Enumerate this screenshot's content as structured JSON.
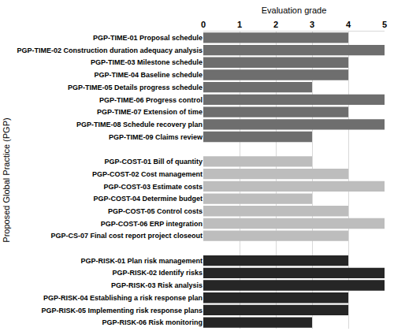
{
  "chart_data": {
    "type": "bar",
    "orientation": "horizontal",
    "x_label": "Evaluation grade",
    "y_label": "Proposed Global Practice (PGP)",
    "categories": [
      "PGP-TIME-01 Proposal schedule",
      "PGP-TIME-02 Construction duration adequacy analysis",
      "PGP-TIME-03 Milestone schedule",
      "PGP-TIME-04 Baseline schedule",
      "PGP-TIME-05 Details progress schedule",
      "PGP-TIME-06 Progress control",
      "PGP-TIME-07 Extension of time",
      "PGP-TIME-08 Schedule recovery plan",
      "PGP-TIME-09 Claims review",
      null,
      "PGP-COST-01 Bill of quantity",
      "PGP-COST-02 Cost management",
      "PGP-COST-03 Estimate costs",
      "PGP-COST-04 Determine budget",
      "PGP-COST-05 Control costs",
      "PGP-COST-06 ERP integration",
      "PGP-CS-07 Final cost report project closeout",
      null,
      "PGP-RISK-01 Plan risk management",
      "PGP-RISK-02 Identify risks",
      "PGP-RISK-03 Risk analysis",
      "PGP-RISK-04 Establishing a risk response plan",
      "PGP-RISK-05 Implementing risk response plans",
      "PGP-RISK-06 Risk monitoring"
    ],
    "values": [
      4,
      5,
      4,
      4,
      3,
      5,
      4,
      5,
      3,
      null,
      3,
      4,
      5,
      3,
      4,
      5,
      4,
      null,
      4,
      5,
      5,
      4,
      4,
      3
    ],
    "colors": [
      "#6e6e6e",
      "#6e6e6e",
      "#6e6e6e",
      "#6e6e6e",
      "#6e6e6e",
      "#6e6e6e",
      "#6e6e6e",
      "#6e6e6e",
      "#6e6e6e",
      null,
      "#bdbdbd",
      "#bdbdbd",
      "#bdbdbd",
      "#bdbdbd",
      "#bdbdbd",
      "#bdbdbd",
      "#bdbdbd",
      null,
      "#262626",
      "#262626",
      "#262626",
      "#262626",
      "#262626",
      "#262626"
    ],
    "xlim": [
      0,
      5
    ],
    "xticks": [
      0,
      1,
      2,
      3,
      4,
      5
    ],
    "grid": true
  }
}
